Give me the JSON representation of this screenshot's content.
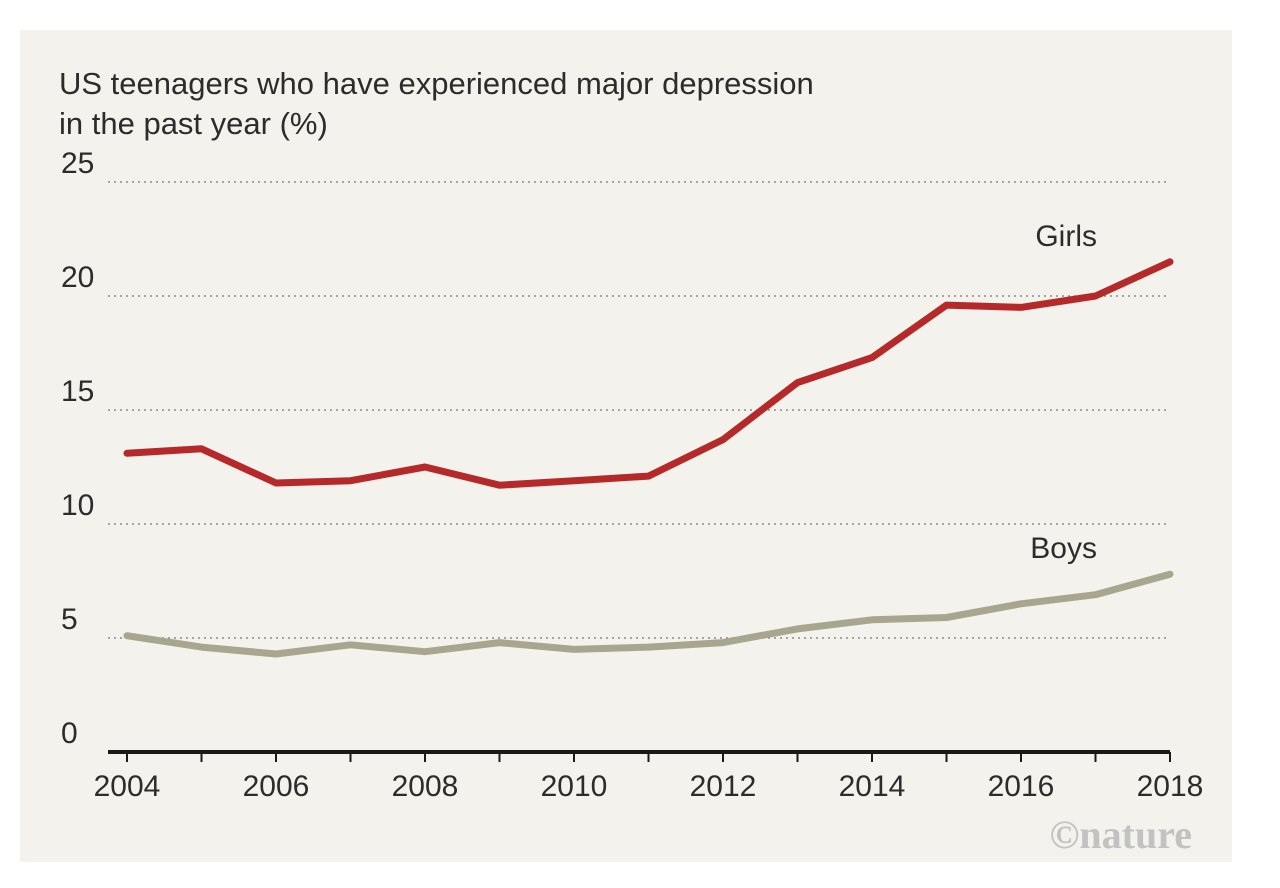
{
  "chart_data": {
    "type": "line",
    "title": "US teenagers who have experienced major depression in the past year (%)",
    "x": [
      2004,
      2005,
      2006,
      2007,
      2008,
      2009,
      2010,
      2011,
      2012,
      2013,
      2014,
      2015,
      2016,
      2017,
      2018
    ],
    "xticks": [
      2004,
      2006,
      2008,
      2010,
      2012,
      2014,
      2016,
      2018
    ],
    "yticks": [
      0,
      5,
      10,
      15,
      20,
      25
    ],
    "ylim": [
      0,
      25
    ],
    "xlim": [
      2004,
      2018
    ],
    "grid": "horizontal dotted",
    "series": [
      {
        "name": "Girls",
        "color": "#b5292b",
        "values": [
          13.1,
          13.3,
          11.8,
          11.9,
          12.5,
          11.7,
          11.9,
          12.1,
          13.7,
          16.2,
          17.3,
          19.6,
          19.5,
          20.0,
          21.5
        ]
      },
      {
        "name": "Boys",
        "color": "#a9a68f",
        "values": [
          5.1,
          4.6,
          4.3,
          4.7,
          4.4,
          4.8,
          4.5,
          4.6,
          4.8,
          5.4,
          5.8,
          5.9,
          6.5,
          6.9,
          7.8
        ]
      }
    ]
  },
  "credit": "©nature"
}
